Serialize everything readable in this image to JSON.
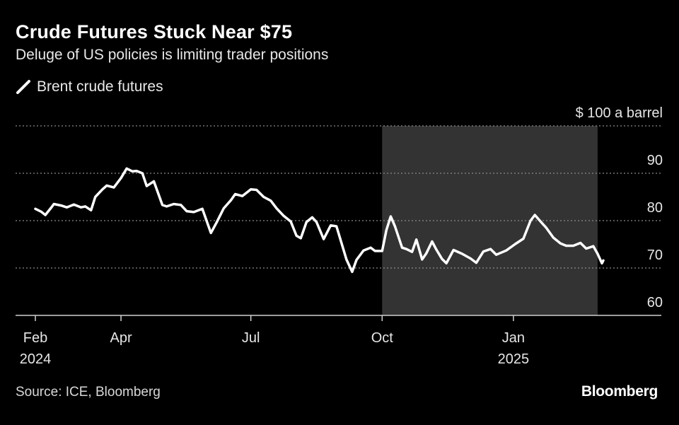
{
  "title": "Crude Futures Stuck Near $75",
  "subtitle": "Deluge of US policies is limiting trader positions",
  "legend": {
    "label": "Brent crude futures"
  },
  "source": "Source: ICE, Bloomberg",
  "brand": "Bloomberg",
  "colors": {
    "background": "#000000",
    "line": "#ffffff",
    "highlight": "#333333",
    "grid": "#8a8a8a"
  },
  "chart_data": {
    "type": "line",
    "title": "Crude Futures Stuck Near $75",
    "subtitle": "Deluge of US policies is limiting trader positions",
    "ylabel": "$ 100 a barrel",
    "ylim": [
      60,
      100
    ],
    "yticks": [
      {
        "value": 100,
        "label": "$ 100 a barrel"
      },
      {
        "value": 90,
        "label": "90"
      },
      {
        "value": 80,
        "label": "80"
      },
      {
        "value": 70,
        "label": "70"
      },
      {
        "value": 60,
        "label": "60"
      }
    ],
    "xlim": [
      "2024-02-01",
      "2025-03-05"
    ],
    "xticks": [
      {
        "date": "2024-02-01",
        "label": "Feb",
        "sublabel": "2024"
      },
      {
        "date": "2024-04-01",
        "label": "Apr",
        "sublabel": ""
      },
      {
        "date": "2024-07-01",
        "label": "Jul",
        "sublabel": ""
      },
      {
        "date": "2024-10-01",
        "label": "Oct",
        "sublabel": ""
      },
      {
        "date": "2025-01-01",
        "label": "Jan",
        "sublabel": "2025"
      }
    ],
    "grid": true,
    "shaded_region": {
      "start": "2024-10-01",
      "end": "2025-03-01"
    },
    "series": [
      {
        "name": "Brent crude futures",
        "x": [
          "2024-02-01",
          "2024-02-05",
          "2024-02-08",
          "2024-02-12",
          "2024-02-14",
          "2024-02-19",
          "2024-02-23",
          "2024-02-28",
          "2024-03-04",
          "2024-03-07",
          "2024-03-11",
          "2024-03-14",
          "2024-03-19",
          "2024-03-22",
          "2024-03-27",
          "2024-04-01",
          "2024-04-05",
          "2024-04-09",
          "2024-04-12",
          "2024-04-16",
          "2024-04-19",
          "2024-04-24",
          "2024-04-30",
          "2024-05-03",
          "2024-05-08",
          "2024-05-13",
          "2024-05-17",
          "2024-05-22",
          "2024-05-28",
          "2024-06-03",
          "2024-06-07",
          "2024-06-12",
          "2024-06-17",
          "2024-06-20",
          "2024-06-25",
          "2024-07-01",
          "2024-07-05",
          "2024-07-10",
          "2024-07-15",
          "2024-07-19",
          "2024-07-24",
          "2024-07-29",
          "2024-08-02",
          "2024-08-05",
          "2024-08-09",
          "2024-08-13",
          "2024-08-16",
          "2024-08-21",
          "2024-08-26",
          "2024-08-30",
          "2024-09-04",
          "2024-09-06",
          "2024-09-10",
          "2024-09-13",
          "2024-09-18",
          "2024-09-23",
          "2024-09-26",
          "2024-10-01",
          "2024-10-04",
          "2024-10-07",
          "2024-10-10",
          "2024-10-15",
          "2024-10-18",
          "2024-10-22",
          "2024-10-25",
          "2024-10-29",
          "2024-11-01",
          "2024-11-05",
          "2024-11-08",
          "2024-11-12",
          "2024-11-15",
          "2024-11-20",
          "2024-11-26",
          "2024-12-02",
          "2024-12-06",
          "2024-12-11",
          "2024-12-16",
          "2024-12-20",
          "2024-12-27",
          "2025-01-02",
          "2025-01-08",
          "2025-01-13",
          "2025-01-16",
          "2025-01-21",
          "2025-01-24",
          "2025-01-29",
          "2025-02-03",
          "2025-02-07",
          "2025-02-12",
          "2025-02-17",
          "2025-02-21",
          "2025-02-26",
          "2025-03-01",
          "2025-03-04",
          "2025-03-05"
        ],
        "values": [
          82.5,
          81.9,
          81.2,
          82.7,
          83.5,
          83.2,
          82.8,
          83.4,
          82.8,
          83.0,
          82.2,
          85.0,
          86.6,
          87.4,
          87.0,
          89.0,
          91.0,
          90.4,
          90.5,
          90.0,
          87.3,
          88.3,
          83.3,
          83.0,
          83.5,
          83.3,
          82.0,
          81.8,
          82.5,
          77.4,
          79.6,
          82.6,
          84.3,
          85.6,
          85.2,
          86.6,
          86.5,
          85.0,
          84.2,
          82.6,
          81.0,
          79.8,
          76.8,
          76.3,
          79.7,
          80.7,
          79.7,
          76.1,
          79.0,
          78.8,
          73.8,
          71.8,
          69.2,
          71.7,
          73.7,
          74.3,
          73.6,
          73.6,
          78.0,
          80.9,
          78.8,
          74.3,
          74.0,
          73.4,
          76.0,
          71.8,
          73.1,
          75.6,
          73.9,
          71.9,
          71.0,
          73.8,
          73.0,
          72.0,
          71.1,
          73.5,
          74.0,
          72.8,
          73.7,
          75.0,
          76.2,
          80.0,
          81.2,
          79.5,
          78.5,
          76.4,
          75.2,
          74.7,
          74.7,
          75.3,
          74.1,
          74.6,
          73.0,
          71.0,
          71.6
        ]
      }
    ]
  }
}
